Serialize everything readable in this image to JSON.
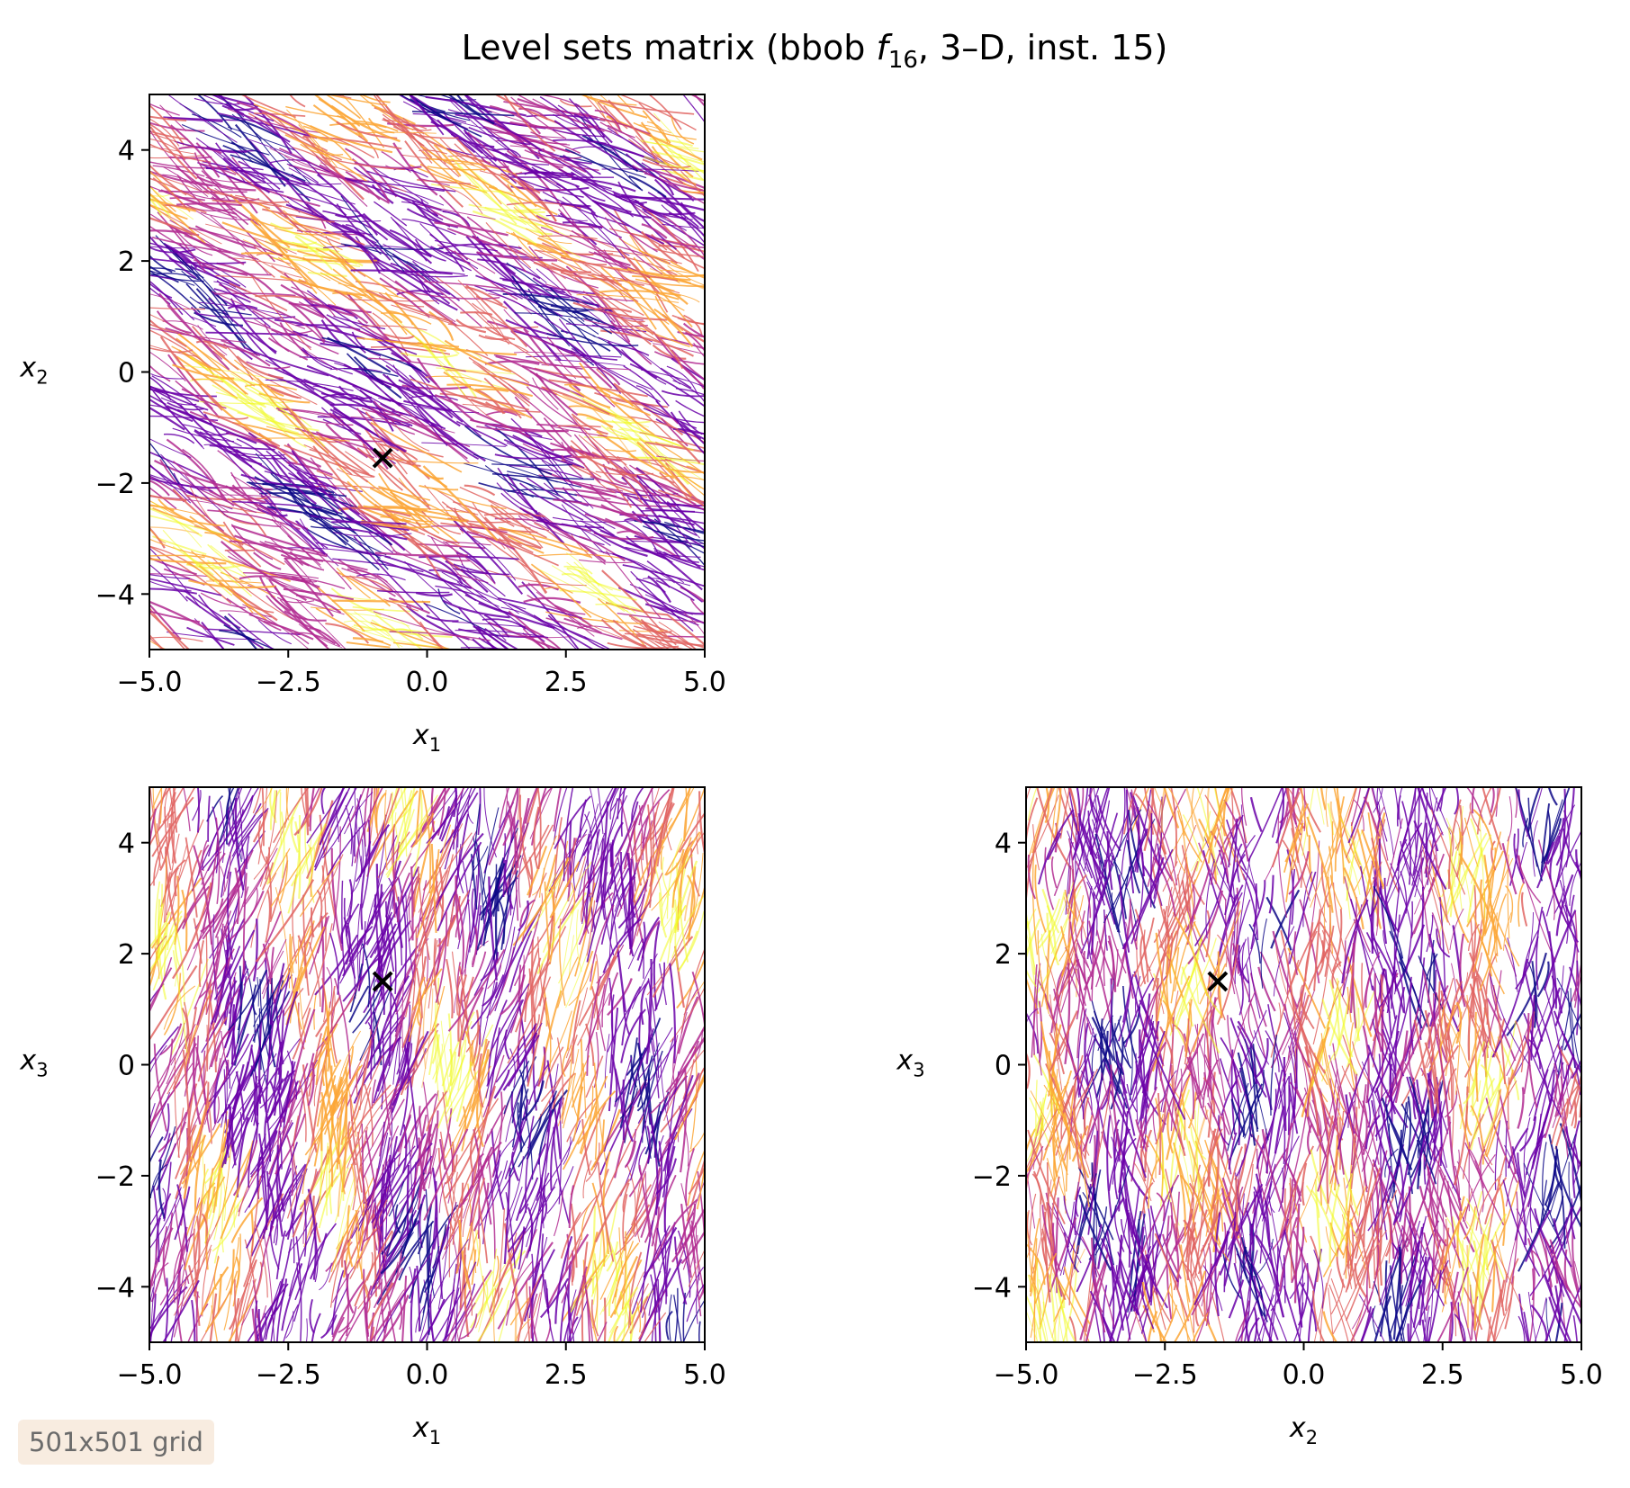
{
  "title": {
    "prefix": "Level sets matrix (bbob ",
    "func_letter": "f",
    "func_sub": "16",
    "suffix": ", 3–D, inst. 15)"
  },
  "colors": {
    "low": "#0d0887",
    "mid_low": "#6a00a8",
    "mid": "#b12a90",
    "mid_high": "#e16462",
    "high": "#fca636",
    "peak": "#f0f921",
    "marker": "#000000"
  },
  "badge": {
    "label": "501x501 grid"
  },
  "chart_data": [
    {
      "type": "contour",
      "id": "x1-x2",
      "xlabel": {
        "var": "x",
        "sub": "1"
      },
      "ylabel": {
        "var": "x",
        "sub": "2"
      },
      "xlim": [
        -5,
        5
      ],
      "ylim": [
        -5,
        5
      ],
      "xticks": [
        -5.0,
        -2.5,
        0.0,
        2.5,
        5.0
      ],
      "xtick_labels": [
        "−5.0",
        "−2.5",
        "0.0",
        "2.5",
        "5.0"
      ],
      "yticks": [
        -4,
        -2,
        0,
        2,
        4
      ],
      "ytick_labels": [
        "−4",
        "−2",
        "0",
        "2",
        "4"
      ],
      "marker": {
        "x": -0.8,
        "y": -1.55,
        "symbol": "x"
      },
      "colormap": "plasma",
      "pattern": "diagonal"
    },
    {
      "type": "contour",
      "id": "x1-x3",
      "xlabel": {
        "var": "x",
        "sub": "1"
      },
      "ylabel": {
        "var": "x",
        "sub": "3"
      },
      "xlim": [
        -5,
        5
      ],
      "ylim": [
        -5,
        5
      ],
      "xticks": [
        -5.0,
        -2.5,
        0.0,
        2.5,
        5.0
      ],
      "xtick_labels": [
        "−5.0",
        "−2.5",
        "0.0",
        "2.5",
        "5.0"
      ],
      "yticks": [
        -4,
        -2,
        0,
        2,
        4
      ],
      "ytick_labels": [
        "−4",
        "−2",
        "0",
        "2",
        "4"
      ],
      "marker": {
        "x": -0.8,
        "y": 1.5,
        "symbol": "x"
      },
      "colormap": "plasma",
      "pattern": "vertical-slant"
    },
    {
      "type": "contour",
      "id": "x2-x3",
      "xlabel": {
        "var": "x",
        "sub": "2"
      },
      "ylabel": {
        "var": "x",
        "sub": "3"
      },
      "xlim": [
        -5,
        5
      ],
      "ylim": [
        -5,
        5
      ],
      "xticks": [
        -5.0,
        -2.5,
        0.0,
        2.5,
        5.0
      ],
      "xtick_labels": [
        "−5.0",
        "−2.5",
        "0.0",
        "2.5",
        "5.0"
      ],
      "yticks": [
        -4,
        -2,
        0,
        2,
        4
      ],
      "ytick_labels": [
        "−4",
        "−2",
        "0",
        "2",
        "4"
      ],
      "marker": {
        "x": -1.55,
        "y": 1.5,
        "symbol": "x"
      },
      "colormap": "plasma",
      "pattern": "vertical"
    }
  ]
}
